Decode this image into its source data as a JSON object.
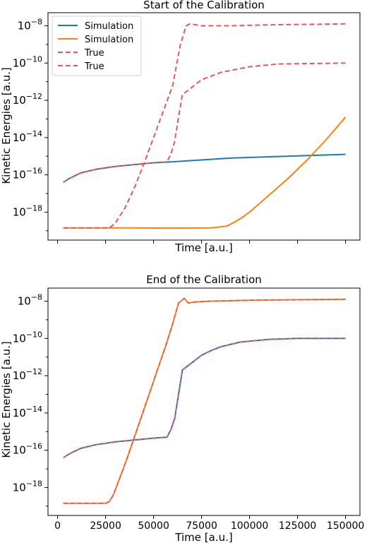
{
  "chart_data": [
    {
      "type": "line",
      "title": "Start of the Calibration",
      "xlabel": "Time [a.u.]",
      "ylabel": "Kinetic Energies [a.u.]",
      "yscale": "log",
      "xlim": [
        -5000,
        157500
      ],
      "ylim_exp": [
        -19.5,
        -7.3
      ],
      "xtick_labels": [],
      "ytick_exps": [
        -18,
        -16,
        -14,
        -12,
        -10,
        -8
      ],
      "legend_position": "top-left",
      "series": [
        {
          "name": "Simulation",
          "color": "#1f77b4",
          "style": "solid",
          "x": [
            3000,
            6000,
            12000,
            20000,
            30000,
            40000,
            50000,
            60000,
            75000,
            90000,
            105000,
            120000,
            135000,
            150000
          ],
          "log10_y": [
            -16.4,
            -16.2,
            -15.9,
            -15.7,
            -15.55,
            -15.45,
            -15.35,
            -15.3,
            -15.2,
            -15.1,
            -15.05,
            -15.0,
            -14.95,
            -14.9
          ]
        },
        {
          "name": "Simulation",
          "color": "#ff7f0e",
          "style": "solid",
          "x": [
            3000,
            20000,
            40000,
            60000,
            80000,
            88000,
            92000,
            96000,
            100000,
            110000,
            120000,
            130000,
            140000,
            150000
          ],
          "log10_y": [
            -18.85,
            -18.85,
            -18.85,
            -18.86,
            -18.85,
            -18.75,
            -18.55,
            -18.3,
            -18.0,
            -17.1,
            -16.2,
            -15.2,
            -14.1,
            -12.9
          ]
        },
        {
          "name": "True",
          "color": "#e05a5a",
          "style": "dashed",
          "x": [
            3000,
            20000,
            27000,
            30000,
            35000,
            40000,
            45000,
            50000,
            55000,
            60000,
            62000,
            64000,
            67000,
            69000,
            75000,
            90000,
            110000,
            150000
          ],
          "log10_y": [
            -18.85,
            -18.85,
            -18.85,
            -18.6,
            -17.8,
            -16.7,
            -15.4,
            -14.0,
            -12.6,
            -11.2,
            -10.1,
            -9.0,
            -8.0,
            -7.9,
            -8.0,
            -8.0,
            -7.95,
            -7.9
          ]
        },
        {
          "name": "True",
          "color": "#e05a5a",
          "style": "dashed",
          "x": [
            3000,
            6000,
            12000,
            20000,
            30000,
            40000,
            50000,
            57000,
            59000,
            61000,
            63000,
            65000,
            70000,
            75000,
            85000,
            100000,
            115000,
            150000
          ],
          "log10_y": [
            -16.4,
            -16.2,
            -15.9,
            -15.7,
            -15.55,
            -15.45,
            -15.35,
            -15.3,
            -14.9,
            -14.2,
            -12.9,
            -11.7,
            -11.3,
            -10.9,
            -10.5,
            -10.2,
            -10.05,
            -10.0
          ]
        }
      ]
    },
    {
      "type": "line",
      "title": "End of the Calibration",
      "xlabel": "Time [a.u.]",
      "ylabel": "Kinetic Energies [a.u.]",
      "yscale": "log",
      "xlim": [
        -5000,
        157500
      ],
      "ylim_exp": [
        -19.5,
        -7.3
      ],
      "xtick_labels": [
        "0",
        "25000",
        "50000",
        "75000",
        "100000",
        "125000",
        "150000"
      ],
      "xtick_values": [
        0,
        25000,
        50000,
        75000,
        100000,
        125000,
        150000
      ],
      "ytick_exps": [
        -18,
        -16,
        -14,
        -12,
        -10,
        -8
      ],
      "series": [
        {
          "color": "#ff7f0e",
          "overlay_color": "#e05a5a",
          "x": [
            3000,
            20000,
            25000,
            27000,
            29000,
            32000,
            36000,
            40000,
            44000,
            48000,
            52000,
            56000,
            60000,
            63000,
            66000,
            68000,
            71000,
            80000,
            100000,
            150000
          ],
          "log10_y": [
            -18.85,
            -18.85,
            -18.85,
            -18.75,
            -18.4,
            -17.6,
            -16.5,
            -15.3,
            -14.1,
            -12.9,
            -11.7,
            -10.5,
            -9.2,
            -8.1,
            -7.85,
            -8.1,
            -8.05,
            -8.0,
            -7.95,
            -7.9
          ]
        },
        {
          "color": "#1f77b4",
          "overlay_color": "#e05a5a",
          "x": [
            3000,
            6000,
            12000,
            20000,
            30000,
            40000,
            50000,
            57000,
            59000,
            61000,
            63000,
            65000,
            70000,
            75000,
            80000,
            85000,
            95000,
            110000,
            125000,
            150000
          ],
          "log10_y": [
            -16.4,
            -16.2,
            -15.9,
            -15.7,
            -15.55,
            -15.45,
            -15.35,
            -15.3,
            -14.9,
            -14.3,
            -13.0,
            -11.7,
            -11.3,
            -10.9,
            -10.65,
            -10.45,
            -10.2,
            -10.05,
            -10.0,
            -10.0
          ]
        }
      ]
    }
  ]
}
